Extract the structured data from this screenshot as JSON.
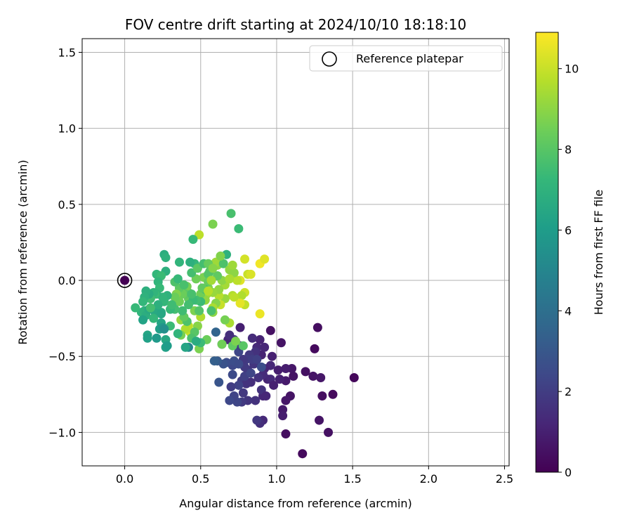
{
  "chart_data": {
    "type": "scatter",
    "title": "FOV centre drift starting at 2024/10/10 18:18:10",
    "xlabel": "Angular distance from reference (arcmin)",
    "ylabel": "Rotation from reference (arcmin)",
    "xlim": [
      -0.28,
      2.53
    ],
    "ylim": [
      -1.22,
      1.59
    ],
    "xticks": [
      0.0,
      0.5,
      1.0,
      1.5,
      2.0,
      2.5
    ],
    "yticks": [
      -1.0,
      -0.5,
      0.0,
      0.5,
      1.0,
      1.5
    ],
    "xtick_labels": [
      "0.0",
      "0.5",
      "1.0",
      "1.5",
      "2.0",
      "2.5"
    ],
    "ytick_labels": [
      "−1.0",
      "−0.5",
      "0.0",
      "0.5",
      "1.0",
      "1.5"
    ],
    "grid": true,
    "legend": {
      "position": "top-right",
      "entries": [
        "Reference platepar"
      ]
    },
    "reference_point": {
      "x": 0.0,
      "y": 0.0
    },
    "colorbar": {
      "label": "Hours from first FF file",
      "colormap": "viridis",
      "range": [
        0,
        10.9
      ],
      "ticks": [
        0,
        2,
        4,
        6,
        8,
        10
      ],
      "tick_labels": [
        "0",
        "2",
        "4",
        "6",
        "8",
        "10"
      ]
    },
    "points": [
      [
        1.51,
        -0.64,
        0.2
      ],
      [
        1.37,
        -0.75,
        0.3
      ],
      [
        1.3,
        -0.76,
        0.4
      ],
      [
        1.34,
        -1.0,
        0.5
      ],
      [
        1.17,
        -1.14,
        0.3
      ],
      [
        1.27,
        -0.31,
        0.4
      ],
      [
        1.25,
        -0.45,
        0.3
      ],
      [
        1.28,
        -0.92,
        0.6
      ],
      [
        1.19,
        -0.6,
        0.5
      ],
      [
        1.24,
        -0.63,
        0.6
      ],
      [
        1.29,
        -0.64,
        0.7
      ],
      [
        1.1,
        -0.58,
        0.7
      ],
      [
        1.11,
        -0.63,
        0.6
      ],
      [
        1.06,
        -0.58,
        0.9
      ],
      [
        1.06,
        -0.66,
        0.8
      ],
      [
        1.09,
        -0.76,
        0.6
      ],
      [
        1.06,
        -0.79,
        0.7
      ],
      [
        1.06,
        -1.01,
        0.4
      ],
      [
        1.04,
        -0.85,
        0.8
      ],
      [
        1.04,
        -0.89,
        0.9
      ],
      [
        1.02,
        -0.65,
        1.0
      ],
      [
        1.01,
        -0.59,
        0.9
      ],
      [
        1.03,
        -0.41,
        0.6
      ],
      [
        0.96,
        -0.33,
        0.5
      ],
      [
        0.94,
        -0.65,
        1.1
      ],
      [
        0.97,
        -0.5,
        1.0
      ],
      [
        0.96,
        -0.56,
        1.2
      ],
      [
        0.96,
        -0.65,
        1.3
      ],
      [
        0.98,
        -0.69,
        1.0
      ],
      [
        0.92,
        -0.58,
        1.1
      ],
      [
        0.9,
        -0.49,
        1.1
      ],
      [
        0.92,
        -0.44,
        1.2
      ],
      [
        0.87,
        -0.44,
        1.3
      ],
      [
        0.89,
        -0.39,
        1.1
      ],
      [
        0.84,
        -0.38,
        1.4
      ],
      [
        0.91,
        -0.62,
        1.4
      ],
      [
        0.91,
        -0.76,
        1.2
      ],
      [
        0.9,
        -0.72,
        1.6
      ],
      [
        0.93,
        -0.76,
        1.2
      ],
      [
        0.91,
        -0.92,
        1.3
      ],
      [
        0.89,
        -0.94,
        1.5
      ],
      [
        0.87,
        -0.92,
        1.8
      ],
      [
        0.86,
        -0.79,
        1.6
      ],
      [
        0.88,
        -0.64,
        1.6
      ],
      [
        0.85,
        -0.55,
        1.7
      ],
      [
        0.86,
        -0.47,
        1.6
      ],
      [
        0.83,
        -0.67,
        1.5
      ],
      [
        0.82,
        -0.49,
        1.8
      ],
      [
        0.81,
        -0.59,
        1.7
      ],
      [
        0.79,
        -0.57,
        1.9
      ],
      [
        0.8,
        -0.52,
        2.0
      ],
      [
        0.78,
        -0.52,
        1.8
      ],
      [
        0.77,
        -0.66,
        2.0
      ],
      [
        0.78,
        -0.74,
        1.8
      ],
      [
        0.81,
        -0.79,
        1.7
      ],
      [
        0.8,
        -0.68,
        1.6
      ],
      [
        0.79,
        -0.63,
        2.1
      ],
      [
        0.75,
        -0.69,
        2.2
      ],
      [
        0.77,
        -0.8,
        1.9
      ],
      [
        0.74,
        -0.8,
        2.3
      ],
      [
        0.72,
        -0.76,
        2.2
      ],
      [
        0.69,
        -0.79,
        2.4
      ],
      [
        0.7,
        -0.7,
        2.0
      ],
      [
        0.71,
        -0.62,
        2.5
      ],
      [
        0.71,
        -0.56,
        2.4
      ],
      [
        0.72,
        -0.53,
        2.6
      ],
      [
        0.75,
        -0.55,
        2.5
      ],
      [
        0.75,
        -0.47,
        2.3
      ],
      [
        0.76,
        -0.43,
        1.9
      ],
      [
        0.72,
        -0.39,
        1.7
      ],
      [
        0.68,
        -0.39,
        1.2
      ],
      [
        0.76,
        -0.31,
        1.0
      ],
      [
        0.69,
        -0.36,
        1.5
      ],
      [
        0.67,
        -0.54,
        2.6
      ],
      [
        0.65,
        -0.55,
        2.8
      ],
      [
        0.61,
        -0.53,
        3.1
      ],
      [
        0.59,
        -0.53,
        3.3
      ],
      [
        0.62,
        -0.67,
        2.9
      ],
      [
        0.6,
        -0.34,
        3.5
      ],
      [
        0.64,
        -0.42,
        2.2
      ],
      [
        0.84,
        -0.52,
        2.0
      ],
      [
        0.83,
        -0.61,
        2.3
      ],
      [
        0.87,
        -0.52,
        2.1
      ],
      [
        0.9,
        -0.57,
        2.6
      ],
      [
        0.78,
        -0.43,
        8.0
      ],
      [
        0.79,
        -0.08,
        10.1
      ],
      [
        0.79,
        -0.16,
        9.9
      ],
      [
        0.79,
        0.14,
        10.2
      ],
      [
        0.81,
        0.04,
        10.0
      ],
      [
        0.83,
        0.04,
        10.3
      ],
      [
        0.76,
        0.0,
        10.4
      ],
      [
        0.77,
        -0.1,
        9.6
      ],
      [
        0.76,
        -0.15,
        10.5
      ],
      [
        0.74,
        0.0,
        9.8
      ],
      [
        0.89,
        0.11,
        10.7
      ],
      [
        0.92,
        0.14,
        10.4
      ],
      [
        0.89,
        -0.22,
        10.6
      ],
      [
        0.69,
        -0.28,
        9.5
      ],
      [
        0.71,
        -0.1,
        9.6
      ],
      [
        0.72,
        -0.11,
        9.8
      ],
      [
        0.66,
        -0.03,
        9.4
      ],
      [
        0.66,
        -0.12,
        9.2
      ],
      [
        0.64,
        0.0,
        9.0
      ],
      [
        0.63,
        -0.16,
        10.0
      ],
      [
        0.62,
        -0.1,
        9.7
      ],
      [
        0.64,
        -0.42,
        8.5
      ],
      [
        0.62,
        -0.06,
        9.1
      ],
      [
        0.61,
        0.1,
        9.0
      ],
      [
        0.6,
        0.12,
        9.3
      ],
      [
        0.58,
        -0.08,
        9.2
      ],
      [
        0.6,
        -0.15,
        8.9
      ],
      [
        0.58,
        -0.18,
        9.5
      ],
      [
        0.58,
        -0.21,
        9.0
      ],
      [
        0.55,
        -0.05,
        8.9
      ],
      [
        0.54,
        -0.09,
        9.3
      ],
      [
        0.53,
        -0.13,
        9.1
      ],
      [
        0.5,
        -0.09,
        8.5
      ],
      [
        0.52,
        0.02,
        8.7
      ],
      [
        0.47,
        0.01,
        8.5
      ],
      [
        0.49,
        0.3,
        9.8
      ],
      [
        0.58,
        0.37,
        8.7
      ],
      [
        0.5,
        -0.24,
        9.6
      ],
      [
        0.48,
        -0.3,
        8.9
      ],
      [
        0.46,
        -0.2,
        8.7
      ],
      [
        0.44,
        -0.13,
        8.8
      ],
      [
        0.42,
        -0.12,
        8.3
      ],
      [
        0.42,
        -0.08,
        8.0
      ],
      [
        0.41,
        -0.04,
        8.6
      ],
      [
        0.4,
        -0.09,
        8.1
      ],
      [
        0.38,
        -0.09,
        8.4
      ],
      [
        0.42,
        -0.3,
        9.8
      ],
      [
        0.43,
        -0.34,
        10.0
      ],
      [
        0.4,
        -0.32,
        9.6
      ],
      [
        0.37,
        -0.36,
        8.6
      ],
      [
        0.37,
        -0.26,
        9.2
      ],
      [
        0.36,
        -0.05,
        8.1
      ],
      [
        0.36,
        -0.14,
        8.5
      ],
      [
        0.34,
        -0.09,
        8.8
      ],
      [
        0.33,
        -0.11,
        8.4
      ],
      [
        0.49,
        -0.45,
        8.7
      ],
      [
        0.54,
        -0.39,
        8.4
      ],
      [
        0.5,
        -0.41,
        7.4
      ],
      [
        0.46,
        -0.34,
        8.0
      ],
      [
        0.44,
        -0.38,
        7.8
      ],
      [
        0.42,
        -0.44,
        5.0
      ],
      [
        0.46,
        0.11,
        7.2
      ],
      [
        0.44,
        0.05,
        7.6
      ],
      [
        0.45,
        0.27,
        7.3
      ],
      [
        0.48,
        0.08,
        8.1
      ],
      [
        0.52,
        0.11,
        7.6
      ],
      [
        0.55,
        0.11,
        8.3
      ],
      [
        0.56,
        0.06,
        8.0
      ],
      [
        0.55,
        0.04,
        7.9
      ],
      [
        0.55,
        -0.01,
        8.3
      ],
      [
        0.53,
        -0.06,
        7.7
      ],
      [
        0.51,
        -0.05,
        8.2
      ],
      [
        0.5,
        -0.14,
        7.4
      ],
      [
        0.49,
        -0.2,
        7.9
      ],
      [
        0.47,
        -0.13,
        7.6
      ],
      [
        0.45,
        -0.13,
        7.4
      ],
      [
        0.44,
        -0.09,
        7.7
      ],
      [
        0.42,
        -0.16,
        7.6
      ],
      [
        0.41,
        -0.27,
        7.8
      ],
      [
        0.39,
        -0.24,
        8.2
      ],
      [
        0.38,
        -0.2,
        7.5
      ],
      [
        0.36,
        0.12,
        7.1
      ],
      [
        0.33,
        -0.01,
        7.8
      ],
      [
        0.33,
        -0.19,
        7.6
      ],
      [
        0.3,
        -0.19,
        7.3
      ],
      [
        0.3,
        -0.3,
        7.4
      ],
      [
        0.28,
        -0.1,
        7.0
      ],
      [
        0.26,
        -0.14,
        7.2
      ],
      [
        0.25,
        -0.11,
        7.1
      ],
      [
        0.24,
        -0.21,
        6.8
      ],
      [
        0.27,
        0.06,
        6.9
      ],
      [
        0.26,
        0.17,
        6.8
      ],
      [
        0.27,
        0.15,
        7.0
      ],
      [
        0.21,
        0.04,
        7.2
      ],
      [
        0.24,
        0.03,
        7.4
      ],
      [
        0.22,
        -0.01,
        7.1
      ],
      [
        0.23,
        -0.05,
        7.3
      ],
      [
        0.21,
        -0.09,
        7.0
      ],
      [
        0.2,
        -0.09,
        7.4
      ],
      [
        0.19,
        -0.08,
        7.1
      ],
      [
        0.17,
        -0.12,
        7.5
      ],
      [
        0.16,
        -0.09,
        6.7
      ],
      [
        0.14,
        -0.07,
        6.9
      ],
      [
        0.13,
        -0.11,
        7.0
      ],
      [
        0.12,
        -0.14,
        7.2
      ],
      [
        0.11,
        -0.21,
        7.1
      ],
      [
        0.13,
        -0.2,
        7.0
      ],
      [
        0.07,
        -0.18,
        7.3
      ],
      [
        0.14,
        -0.23,
        6.8
      ],
      [
        0.16,
        -0.19,
        6.6
      ],
      [
        0.2,
        -0.21,
        6.6
      ],
      [
        0.22,
        -0.16,
        6.9
      ],
      [
        0.24,
        -0.22,
        6.5
      ],
      [
        0.19,
        -0.25,
        7.2
      ],
      [
        0.24,
        -0.28,
        6.4
      ],
      [
        0.23,
        -0.32,
        6.1
      ],
      [
        0.25,
        -0.31,
        5.8
      ],
      [
        0.26,
        -0.32,
        5.4
      ],
      [
        0.21,
        -0.38,
        5.9
      ],
      [
        0.15,
        -0.36,
        6.4
      ],
      [
        0.15,
        -0.38,
        6.2
      ],
      [
        0.27,
        -0.39,
        6.5
      ],
      [
        0.27,
        -0.44,
        6.2
      ],
      [
        0.28,
        -0.43,
        6.0
      ],
      [
        0.12,
        -0.26,
        6.3
      ],
      [
        0.17,
        -0.18,
        7.6
      ],
      [
        0.31,
        -0.16,
        7.5
      ],
      [
        0.35,
        -0.35,
        7.1
      ],
      [
        0.4,
        -0.44,
        6.4
      ],
      [
        0.47,
        -0.4,
        6.7
      ],
      [
        0.35,
        0.01,
        7.3
      ],
      [
        0.39,
        -0.03,
        7.7
      ],
      [
        0.43,
        0.12,
        6.9
      ],
      [
        0.57,
        -0.2,
        7.7
      ],
      [
        0.65,
        0.11,
        7.8
      ],
      [
        0.67,
        0.17,
        7.0
      ],
      [
        0.63,
        0.16,
        8.8
      ],
      [
        0.7,
        0.44,
        7.7
      ],
      [
        0.75,
        0.34,
        7.4
      ],
      [
        0.66,
        -0.26,
        8.6
      ],
      [
        0.71,
        -0.43,
        8.2
      ],
      [
        0.73,
        -0.4,
        8.7
      ],
      [
        0.61,
        0.03,
        8.2
      ],
      [
        0.58,
        0.08,
        8.9
      ],
      [
        0.57,
        0.0,
        9.4
      ],
      [
        0.55,
        -0.07,
        9.7
      ],
      [
        0.69,
        0.07,
        9.1
      ],
      [
        0.72,
        0.05,
        9.0
      ],
      [
        0.71,
        0.1,
        9.3
      ],
      [
        0.69,
        0.01,
        9.5
      ]
    ]
  }
}
